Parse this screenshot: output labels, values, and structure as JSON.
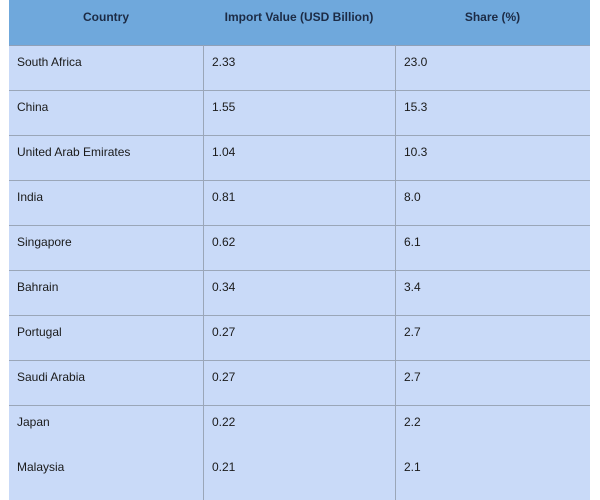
{
  "chart_data": {
    "type": "table",
    "columns": [
      "Country",
      "Import Value (USD Billion)",
      "Share (%)"
    ],
    "rows": [
      [
        "South Africa",
        "2.33",
        "23.0"
      ],
      [
        "China",
        "1.55",
        "15.3"
      ],
      [
        "United Arab Emirates",
        "1.04",
        "10.3"
      ],
      [
        "India",
        "0.81",
        "8.0"
      ],
      [
        "Singapore",
        "0.62",
        "6.1"
      ],
      [
        "Bahrain",
        "0.34",
        "3.4"
      ],
      [
        "Portugal",
        "0.27",
        "2.7"
      ],
      [
        "Saudi Arabia",
        "0.27",
        "2.7"
      ],
      [
        "Japan",
        "0.22",
        "2.2"
      ],
      [
        "Malaysia",
        "0.21",
        "2.1"
      ]
    ]
  },
  "colors": {
    "header_bg": "#6fa8dc",
    "body_bg": "#c9daf8",
    "grid": "#9aa6b8"
  }
}
